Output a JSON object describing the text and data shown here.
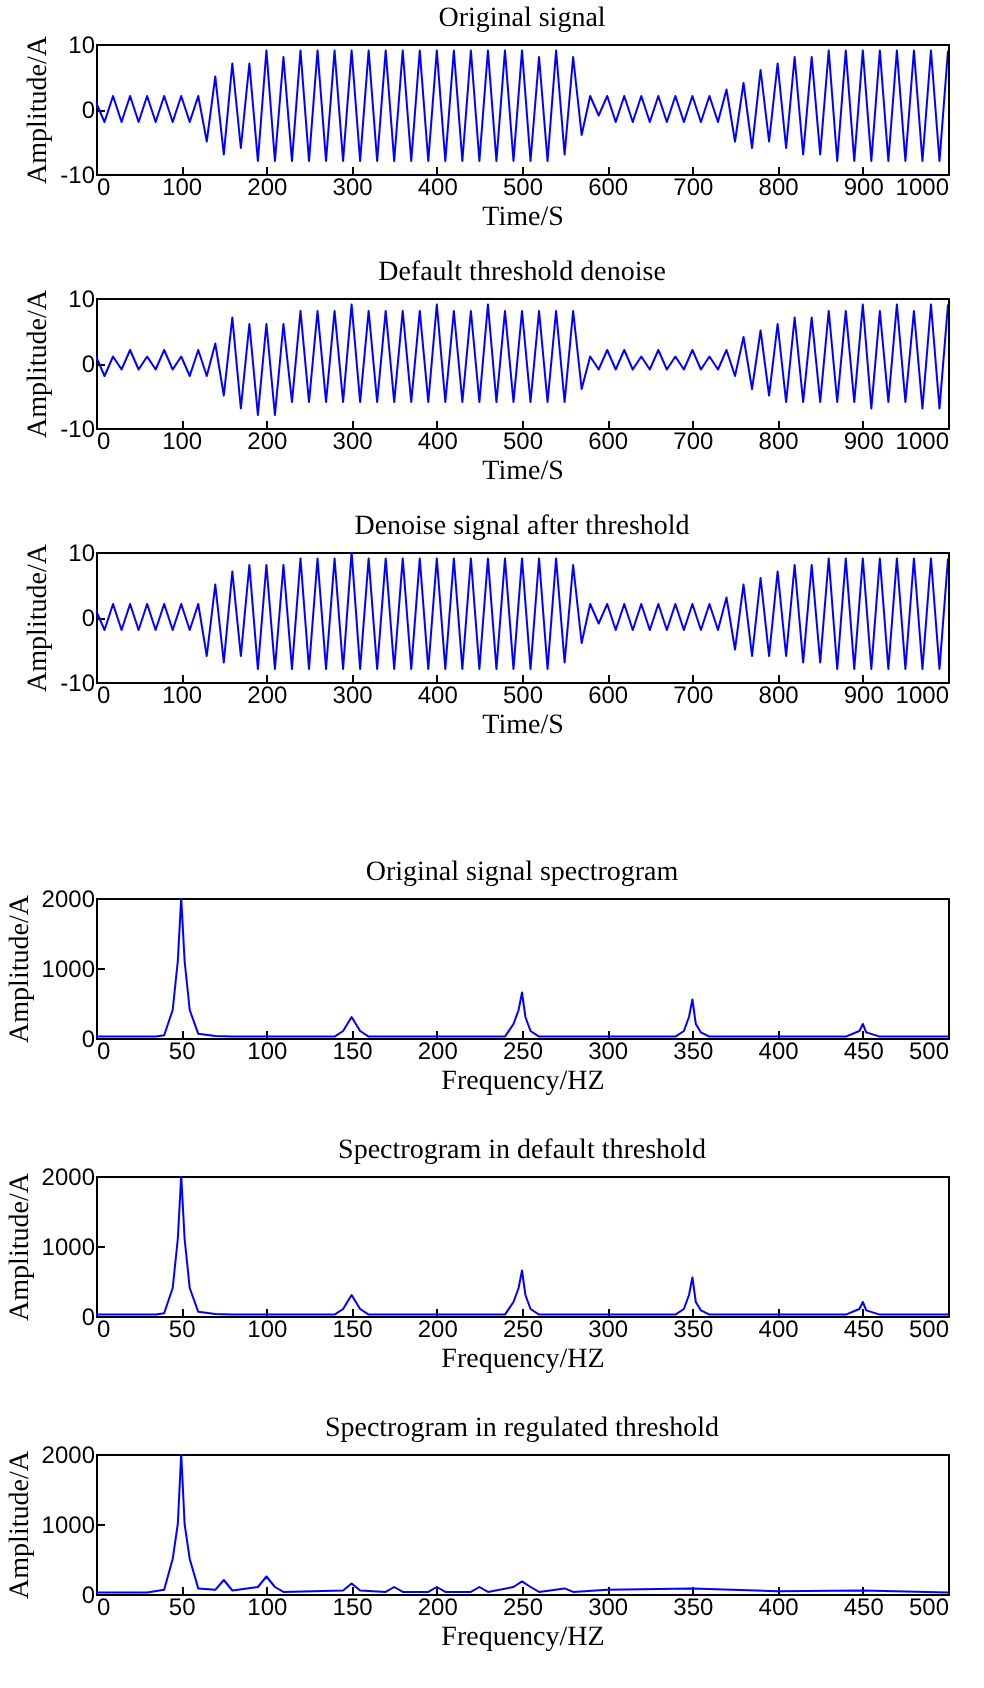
{
  "chart_data": [
    {
      "type": "line",
      "title": "Original signal",
      "xlabel": "Time/S",
      "ylabel": "Amplitude/A",
      "color": "#0000ff",
      "xlim": [
        0,
        1000
      ],
      "ylim": [
        -10,
        10
      ],
      "xticks": [
        0,
        100,
        200,
        300,
        400,
        500,
        600,
        700,
        800,
        900,
        1000
      ],
      "yticks": [
        -10,
        0,
        10
      ],
      "x": [
        0,
        10,
        20,
        30,
        40,
        50,
        60,
        70,
        80,
        90,
        100,
        110,
        120,
        130,
        140,
        150,
        160,
        170,
        180,
        190,
        200,
        210,
        220,
        230,
        240,
        250,
        260,
        270,
        280,
        290,
        300,
        310,
        320,
        330,
        340,
        350,
        360,
        370,
        380,
        390,
        400,
        410,
        420,
        430,
        440,
        450,
        460,
        470,
        480,
        490,
        500,
        510,
        520,
        530,
        540,
        550,
        560,
        570,
        580,
        590,
        600,
        610,
        620,
        630,
        640,
        650,
        660,
        670,
        680,
        690,
        700,
        710,
        720,
        730,
        740,
        750,
        760,
        770,
        780,
        790,
        800,
        810,
        820,
        830,
        840,
        850,
        860,
        870,
        880,
        890,
        900,
        910,
        920,
        930,
        940,
        950,
        960,
        970,
        980,
        990,
        1000
      ],
      "values": [
        1,
        -2,
        2,
        -2,
        2,
        -2,
        2,
        -2,
        2,
        -2,
        2,
        -2,
        2,
        -5,
        5,
        -7,
        7,
        -6,
        7,
        -8,
        9,
        -8,
        8,
        -8,
        9,
        -8,
        9,
        -8,
        9,
        -8,
        9,
        -8,
        9,
        -8,
        9,
        -8,
        9,
        -8,
        9,
        -8,
        9,
        -8,
        9,
        -8,
        9,
        -8,
        9,
        -8,
        9,
        -8,
        9,
        -8,
        8,
        -8,
        9,
        -7,
        8,
        -4,
        2,
        -1,
        2,
        -2,
        2,
        -2,
        2,
        -2,
        2,
        -2,
        2,
        -2,
        2,
        -2,
        2,
        -2,
        3,
        -5,
        4,
        -6,
        6,
        -5,
        7,
        -6,
        8,
        -7,
        8,
        -7,
        9,
        -8,
        9,
        -8,
        9,
        -8,
        9,
        -8,
        9,
        -8,
        9,
        -8,
        9,
        -8,
        9
      ]
    },
    {
      "type": "line",
      "title": "Default threshold denoise",
      "xlabel": "Time/S",
      "ylabel": "Amplitude/A",
      "color": "#0000ff",
      "xlim": [
        0,
        1000
      ],
      "ylim": [
        -10,
        10
      ],
      "xticks": [
        0,
        100,
        200,
        300,
        400,
        500,
        600,
        700,
        800,
        900,
        1000
      ],
      "yticks": [
        -10,
        0,
        10
      ],
      "x": [
        0,
        10,
        20,
        30,
        40,
        50,
        60,
        70,
        80,
        90,
        100,
        110,
        120,
        130,
        140,
        150,
        160,
        170,
        180,
        190,
        200,
        210,
        220,
        230,
        240,
        250,
        260,
        270,
        280,
        290,
        300,
        310,
        320,
        330,
        340,
        350,
        360,
        370,
        380,
        390,
        400,
        410,
        420,
        430,
        440,
        450,
        460,
        470,
        480,
        490,
        500,
        510,
        520,
        530,
        540,
        550,
        560,
        570,
        580,
        590,
        600,
        610,
        620,
        630,
        640,
        650,
        660,
        670,
        680,
        690,
        700,
        710,
        720,
        730,
        740,
        750,
        760,
        770,
        780,
        790,
        800,
        810,
        820,
        830,
        840,
        850,
        860,
        870,
        880,
        890,
        900,
        910,
        920,
        930,
        940,
        950,
        960,
        970,
        980,
        990,
        1000
      ],
      "values": [
        1,
        -2,
        1,
        -1,
        2,
        -1,
        1,
        -1,
        2,
        -1,
        1,
        -2,
        2,
        -2,
        3,
        -5,
        7,
        -7,
        6,
        -8,
        6,
        -8,
        6,
        -6,
        8,
        -6,
        8,
        -6,
        8,
        -6,
        9,
        -6,
        8,
        -6,
        8,
        -6,
        8,
        -6,
        8,
        -6,
        9,
        -6,
        8,
        -6,
        8,
        -6,
        9,
        -6,
        8,
        -6,
        8,
        -6,
        8,
        -6,
        8,
        -6,
        8,
        -4,
        1,
        -1,
        2,
        -1,
        2,
        -1,
        1,
        -1,
        2,
        -1,
        1,
        -1,
        2,
        -1,
        1,
        -1,
        2,
        -2,
        4,
        -4,
        5,
        -5,
        6,
        -6,
        7,
        -6,
        7,
        -6,
        8,
        -6,
        8,
        -6,
        9,
        -7,
        8,
        -6,
        9,
        -6,
        8,
        -7,
        9,
        -7,
        9
      ]
    },
    {
      "type": "line",
      "title": "Denoise signal after threshold",
      "xlabel": "Time/S",
      "ylabel": "Amplitude/A",
      "color": "#0000ff",
      "xlim": [
        0,
        1000
      ],
      "ylim": [
        -10,
        10
      ],
      "xticks": [
        0,
        100,
        200,
        300,
        400,
        500,
        600,
        700,
        800,
        900,
        1000
      ],
      "yticks": [
        -10,
        0,
        10
      ],
      "x": [
        0,
        10,
        20,
        30,
        40,
        50,
        60,
        70,
        80,
        90,
        100,
        110,
        120,
        130,
        140,
        150,
        160,
        170,
        180,
        190,
        200,
        210,
        220,
        230,
        240,
        250,
        260,
        270,
        280,
        290,
        300,
        310,
        320,
        330,
        340,
        350,
        360,
        370,
        380,
        390,
        400,
        410,
        420,
        430,
        440,
        450,
        460,
        470,
        480,
        490,
        500,
        510,
        520,
        530,
        540,
        550,
        560,
        570,
        580,
        590,
        600,
        610,
        620,
        630,
        640,
        650,
        660,
        670,
        680,
        690,
        700,
        710,
        720,
        730,
        740,
        750,
        760,
        770,
        780,
        790,
        800,
        810,
        820,
        830,
        840,
        850,
        860,
        870,
        880,
        890,
        900,
        910,
        920,
        930,
        940,
        950,
        960,
        970,
        980,
        990,
        1000
      ],
      "values": [
        1,
        -2,
        2,
        -2,
        2,
        -2,
        2,
        -2,
        2,
        -2,
        2,
        -2,
        2,
        -6,
        5,
        -7,
        7,
        -6,
        8,
        -8,
        8,
        -8,
        8,
        -8,
        9,
        -8,
        9,
        -8,
        9,
        -8,
        10,
        -8,
        9,
        -8,
        9,
        -8,
        9,
        -8,
        9,
        -8,
        9,
        -8,
        9,
        -8,
        9,
        -8,
        9,
        -8,
        9,
        -8,
        9,
        -8,
        9,
        -8,
        9,
        -7,
        8,
        -4,
        2,
        -1,
        2,
        -2,
        2,
        -2,
        2,
        -2,
        2,
        -2,
        2,
        -2,
        2,
        -2,
        2,
        -2,
        3,
        -5,
        5,
        -6,
        6,
        -6,
        7,
        -6,
        8,
        -7,
        8,
        -7,
        9,
        -8,
        9,
        -8,
        9,
        -8,
        9,
        -8,
        9,
        -8,
        9,
        -8,
        9,
        -8,
        9
      ]
    },
    {
      "type": "line",
      "title": "Original signal spectrogram",
      "xlabel": "Frequency/HZ",
      "ylabel": "Amplitude/A",
      "color": "#0000ff",
      "xlim": [
        0,
        500
      ],
      "ylim": [
        0,
        2000
      ],
      "xticks": [
        0,
        50,
        100,
        150,
        200,
        250,
        300,
        350,
        400,
        450,
        500
      ],
      "yticks": [
        0,
        1000,
        2000
      ],
      "x": [
        0,
        35,
        40,
        45,
        48,
        50,
        52,
        55,
        60,
        70,
        80,
        140,
        145,
        150,
        155,
        160,
        240,
        245,
        248,
        250,
        252,
        255,
        260,
        340,
        345,
        348,
        350,
        352,
        355,
        360,
        440,
        448,
        450,
        452,
        460,
        500
      ],
      "values": [
        20,
        20,
        40,
        400,
        1100,
        2000,
        1100,
        400,
        60,
        30,
        20,
        20,
        100,
        300,
        100,
        20,
        20,
        200,
        400,
        650,
        300,
        100,
        20,
        20,
        100,
        300,
        550,
        200,
        80,
        20,
        20,
        100,
        200,
        80,
        20,
        20
      ]
    },
    {
      "type": "line",
      "title": "Spectrogram in default threshold",
      "xlabel": "Frequency/HZ",
      "ylabel": "Amplitude/A",
      "color": "#0000ff",
      "xlim": [
        0,
        500
      ],
      "ylim": [
        0,
        2000
      ],
      "xticks": [
        0,
        50,
        100,
        150,
        200,
        250,
        300,
        350,
        400,
        450,
        500
      ],
      "yticks": [
        0,
        1000,
        2000
      ],
      "x": [
        0,
        35,
        40,
        45,
        48,
        50,
        52,
        55,
        60,
        70,
        80,
        140,
        145,
        150,
        155,
        160,
        240,
        245,
        248,
        250,
        252,
        255,
        260,
        340,
        345,
        348,
        350,
        352,
        355,
        360,
        440,
        448,
        450,
        452,
        460,
        500
      ],
      "values": [
        20,
        20,
        40,
        400,
        1100,
        2000,
        1100,
        400,
        60,
        30,
        20,
        20,
        100,
        300,
        100,
        20,
        20,
        200,
        400,
        650,
        300,
        100,
        20,
        20,
        100,
        300,
        550,
        200,
        80,
        20,
        20,
        100,
        200,
        80,
        20,
        20
      ]
    },
    {
      "type": "line",
      "title": "Spectrogram in regulated threshold",
      "xlabel": "Frequency/HZ",
      "ylabel": "Amplitude/A",
      "color": "#0000ff",
      "xlim": [
        0,
        500
      ],
      "ylim": [
        0,
        2000
      ],
      "xticks": [
        0,
        50,
        100,
        150,
        200,
        250,
        300,
        350,
        400,
        450,
        500
      ],
      "yticks": [
        0,
        1000,
        2000
      ],
      "x": [
        0,
        30,
        40,
        45,
        48,
        50,
        52,
        55,
        60,
        70,
        75,
        80,
        95,
        100,
        105,
        110,
        145,
        150,
        155,
        170,
        175,
        180,
        195,
        200,
        205,
        220,
        225,
        230,
        245,
        250,
        255,
        260,
        275,
        280,
        300,
        350,
        400,
        450,
        500
      ],
      "values": [
        20,
        20,
        60,
        500,
        1000,
        2000,
        1000,
        500,
        80,
        60,
        200,
        50,
        100,
        250,
        100,
        30,
        50,
        150,
        50,
        30,
        100,
        30,
        30,
        100,
        30,
        30,
        100,
        30,
        100,
        180,
        100,
        30,
        80,
        30,
        60,
        80,
        40,
        50,
        20
      ]
    }
  ]
}
